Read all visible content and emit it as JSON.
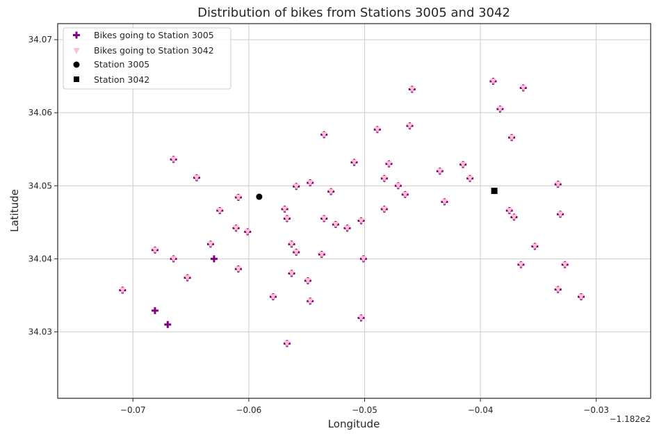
{
  "chart_data": {
    "type": "scatter",
    "title": "Distribution of bikes from Stations 3005 and 3042",
    "xlabel": "Longitude",
    "ylabel": "Latitude",
    "x_offset_label": "−1.182e2",
    "xlim": [
      -0.0765,
      -0.0253
    ],
    "ylim": [
      34.0209,
      34.0722
    ],
    "x_ticks": [
      -0.07,
      -0.06,
      -0.05,
      -0.04,
      -0.03
    ],
    "x_tick_labels": [
      "−0.07",
      "−0.06",
      "−0.05",
      "−0.04",
      "−0.03"
    ],
    "y_ticks": [
      34.03,
      34.04,
      34.05,
      34.06,
      34.07
    ],
    "y_tick_labels": [
      "34.03",
      "34.04",
      "34.05",
      "34.06",
      "34.07"
    ],
    "grid": true,
    "legend_position": "top-left",
    "series": [
      {
        "name": "Bikes going to Station 3005",
        "marker": "plus",
        "color": "#800080",
        "points": [
          [
            -0.0709,
            34.0357
          ],
          [
            -0.0681,
            34.0412
          ],
          [
            -0.0665,
            34.04
          ],
          [
            -0.0665,
            34.0536
          ],
          [
            -0.0653,
            34.0374
          ],
          [
            -0.0645,
            34.0511
          ],
          [
            -0.0633,
            34.042
          ],
          [
            -0.0625,
            34.0466
          ],
          [
            -0.0611,
            34.0442
          ],
          [
            -0.0609,
            34.0484
          ],
          [
            -0.0609,
            34.0386
          ],
          [
            -0.0601,
            34.0437
          ],
          [
            -0.0579,
            34.0348
          ],
          [
            -0.0569,
            34.0468
          ],
          [
            -0.0567,
            34.0455
          ],
          [
            -0.0567,
            34.0284
          ],
          [
            -0.0563,
            34.042
          ],
          [
            -0.0563,
            34.038
          ],
          [
            -0.0559,
            34.0499
          ],
          [
            -0.0559,
            34.0409
          ],
          [
            -0.0549,
            34.037
          ],
          [
            -0.0547,
            34.0504
          ],
          [
            -0.0547,
            34.0342
          ],
          [
            -0.0537,
            34.0406
          ],
          [
            -0.0535,
            34.057
          ],
          [
            -0.0535,
            34.0455
          ],
          [
            -0.0529,
            34.0492
          ],
          [
            -0.0525,
            34.0447
          ],
          [
            -0.0515,
            34.0442
          ],
          [
            -0.0509,
            34.0532
          ],
          [
            -0.0503,
            34.0452
          ],
          [
            -0.0503,
            34.0319
          ],
          [
            -0.0501,
            34.04
          ],
          [
            -0.0489,
            34.0577
          ],
          [
            -0.0483,
            34.051
          ],
          [
            -0.0483,
            34.0468
          ],
          [
            -0.0479,
            34.053
          ],
          [
            -0.0471,
            34.05
          ],
          [
            -0.0465,
            34.0488
          ],
          [
            -0.0461,
            34.0582
          ],
          [
            -0.0459,
            34.0632
          ],
          [
            -0.0435,
            34.052
          ],
          [
            -0.0431,
            34.0478
          ],
          [
            -0.0415,
            34.0529
          ],
          [
            -0.0409,
            34.051
          ],
          [
            -0.0389,
            34.0643
          ],
          [
            -0.0383,
            34.0605
          ],
          [
            -0.0375,
            34.0466
          ],
          [
            -0.0373,
            34.0566
          ],
          [
            -0.0371,
            34.0457
          ],
          [
            -0.0365,
            34.0392
          ],
          [
            -0.0363,
            34.0634
          ],
          [
            -0.0353,
            34.0417
          ],
          [
            -0.0333,
            34.0502
          ],
          [
            -0.0333,
            34.0358
          ],
          [
            -0.0331,
            34.0461
          ],
          [
            -0.0327,
            34.0392
          ],
          [
            -0.0313,
            34.0348
          ],
          [
            -0.063,
            34.04
          ],
          [
            -0.0681,
            34.0329
          ],
          [
            -0.067,
            34.031
          ]
        ]
      },
      {
        "name": "Bikes going to Station 3042",
        "marker": "triangle_down",
        "color": "#ffc0cb",
        "points": [
          [
            -0.0709,
            34.0357
          ],
          [
            -0.0681,
            34.0412
          ],
          [
            -0.0665,
            34.04
          ],
          [
            -0.0665,
            34.0536
          ],
          [
            -0.0653,
            34.0374
          ],
          [
            -0.0645,
            34.0511
          ],
          [
            -0.0633,
            34.042
          ],
          [
            -0.0625,
            34.0466
          ],
          [
            -0.0611,
            34.0442
          ],
          [
            -0.0609,
            34.0484
          ],
          [
            -0.0609,
            34.0386
          ],
          [
            -0.0601,
            34.0437
          ],
          [
            -0.0579,
            34.0348
          ],
          [
            -0.0569,
            34.0468
          ],
          [
            -0.0567,
            34.0455
          ],
          [
            -0.0567,
            34.0284
          ],
          [
            -0.0563,
            34.042
          ],
          [
            -0.0563,
            34.038
          ],
          [
            -0.0559,
            34.0499
          ],
          [
            -0.0559,
            34.0409
          ],
          [
            -0.0549,
            34.037
          ],
          [
            -0.0547,
            34.0504
          ],
          [
            -0.0547,
            34.0342
          ],
          [
            -0.0537,
            34.0406
          ],
          [
            -0.0535,
            34.057
          ],
          [
            -0.0535,
            34.0455
          ],
          [
            -0.0529,
            34.0492
          ],
          [
            -0.0525,
            34.0447
          ],
          [
            -0.0515,
            34.0442
          ],
          [
            -0.0509,
            34.0532
          ],
          [
            -0.0503,
            34.0452
          ],
          [
            -0.0503,
            34.0319
          ],
          [
            -0.0501,
            34.04
          ],
          [
            -0.0489,
            34.0577
          ],
          [
            -0.0483,
            34.051
          ],
          [
            -0.0483,
            34.0468
          ],
          [
            -0.0479,
            34.053
          ],
          [
            -0.0471,
            34.05
          ],
          [
            -0.0465,
            34.0488
          ],
          [
            -0.0461,
            34.0582
          ],
          [
            -0.0459,
            34.0632
          ],
          [
            -0.0435,
            34.052
          ],
          [
            -0.0431,
            34.0478
          ],
          [
            -0.0415,
            34.0529
          ],
          [
            -0.0409,
            34.051
          ],
          [
            -0.0389,
            34.0643
          ],
          [
            -0.0383,
            34.0605
          ],
          [
            -0.0375,
            34.0466
          ],
          [
            -0.0373,
            34.0566
          ],
          [
            -0.0371,
            34.0457
          ],
          [
            -0.0365,
            34.0392
          ],
          [
            -0.0363,
            34.0634
          ],
          [
            -0.0353,
            34.0417
          ],
          [
            -0.0333,
            34.0502
          ],
          [
            -0.0333,
            34.0358
          ],
          [
            -0.0331,
            34.0461
          ],
          [
            -0.0327,
            34.0392
          ],
          [
            -0.0313,
            34.0348
          ]
        ]
      },
      {
        "name": "Station 3005",
        "marker": "circle",
        "color": "#000000",
        "points": [
          [
            -0.0591,
            34.0485
          ]
        ]
      },
      {
        "name": "Station 3042",
        "marker": "square",
        "color": "#000000",
        "points": [
          [
            -0.0388,
            34.0493
          ]
        ]
      }
    ]
  }
}
